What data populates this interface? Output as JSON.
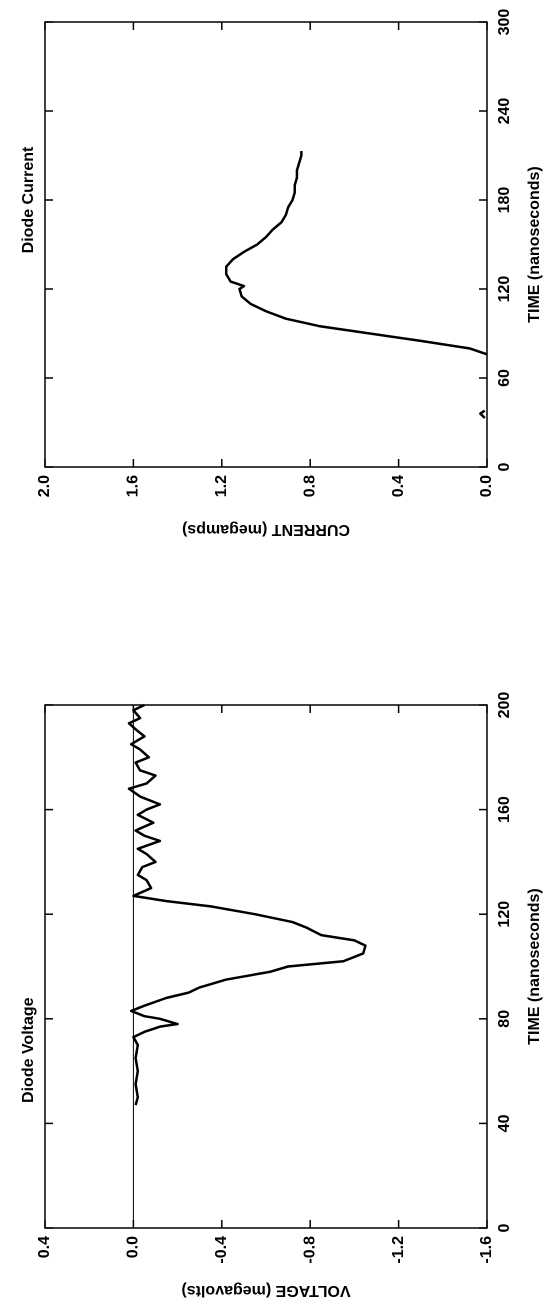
{
  "chart_data": [
    {
      "type": "line",
      "title": "Diode Current",
      "xlabel": "TIME (nanoseconds)",
      "ylabel": "CURRENT (megamps)",
      "xlim": [
        0,
        300
      ],
      "xticks": [
        0,
        60,
        120,
        180,
        240,
        300
      ],
      "ylim": [
        0,
        2
      ],
      "yticks": [
        {
          "value": 0,
          "label": "0.0"
        },
        0.4,
        0.8,
        1.2,
        1.6,
        {
          "value": 2,
          "label": "2.0"
        }
      ],
      "zero_line": false,
      "series": [
        {
          "color": "#000000",
          "x": [
            33,
            36,
            38,
            null,
            76,
            80,
            85,
            90,
            95,
            100,
            105,
            110,
            115,
            120,
            122,
            125,
            130,
            135,
            140,
            145,
            150,
            155,
            160,
            165,
            170,
            175,
            180,
            185,
            190,
            195,
            200,
            205,
            210,
            213
          ],
          "values": [
            0.01,
            0.03,
            0.01,
            null,
            0.0,
            0.08,
            0.3,
            0.53,
            0.76,
            0.91,
            1.0,
            1.07,
            1.11,
            1.12,
            1.1,
            1.16,
            1.18,
            1.18,
            1.15,
            1.1,
            1.04,
            1.0,
            0.97,
            0.93,
            0.91,
            0.9,
            0.88,
            0.87,
            0.87,
            0.86,
            0.86,
            0.85,
            0.84,
            0.84
          ]
        }
      ]
    },
    {
      "type": "line",
      "title": "Diode Voltage",
      "xlabel": "TIME (nanoseconds)",
      "ylabel": "VOLTAGE (megavolts)",
      "xlim": [
        0,
        200
      ],
      "xticks": [
        0,
        40,
        80,
        120,
        160,
        200
      ],
      "ylim": [
        -1.6,
        0.4
      ],
      "yticks": [
        -1.6,
        -1.2,
        -0.8,
        -0.4,
        {
          "value": 0,
          "label": "0.0"
        },
        0.4
      ],
      "zero_line": true,
      "series": [
        {
          "color": "#000000",
          "x": [
            47,
            50,
            55,
            60,
            65,
            70,
            73,
            75,
            77,
            78,
            80,
            81,
            83,
            85,
            88,
            90,
            92,
            95,
            98,
            100,
            102,
            105,
            108,
            110,
            112,
            115,
            117,
            120,
            123,
            125,
            127,
            130,
            133,
            135,
            138,
            140,
            143,
            145,
            148,
            150,
            152,
            155,
            158,
            160,
            162,
            165,
            168,
            170,
            173,
            175,
            178,
            180,
            183,
            185,
            188,
            190,
            193,
            195,
            198,
            200
          ],
          "values": [
            -0.01,
            -0.02,
            -0.01,
            -0.02,
            -0.01,
            -0.02,
            0.0,
            -0.05,
            -0.12,
            -0.2,
            -0.12,
            -0.05,
            0.01,
            -0.05,
            -0.15,
            -0.25,
            -0.3,
            -0.42,
            -0.62,
            -0.7,
            -0.95,
            -1.04,
            -1.05,
            -1.0,
            -0.85,
            -0.78,
            -0.72,
            -0.55,
            -0.35,
            -0.15,
            0.0,
            -0.08,
            -0.06,
            -0.02,
            -0.04,
            -0.1,
            -0.06,
            -0.02,
            -0.12,
            -0.05,
            -0.01,
            -0.09,
            -0.02,
            -0.06,
            -0.12,
            -0.03,
            0.02,
            -0.06,
            -0.1,
            -0.03,
            -0.01,
            -0.07,
            -0.03,
            0.01,
            -0.05,
            -0.02,
            0.02,
            -0.03,
            0.0,
            -0.05
          ]
        }
      ]
    }
  ]
}
